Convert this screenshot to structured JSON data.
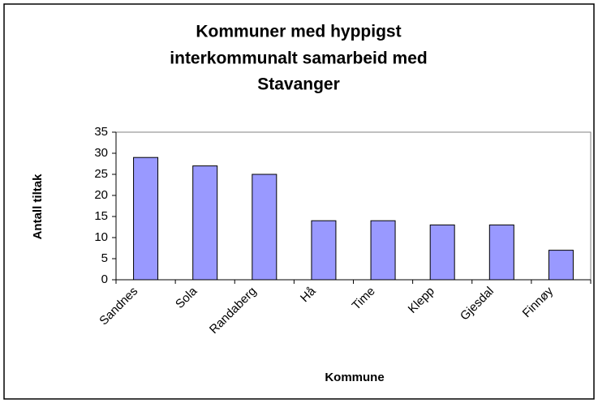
{
  "chart_data": {
    "type": "bar",
    "title": [
      "Kommuner med hyppigst",
      "interkommunalt samarbeid med",
      "Stavanger"
    ],
    "x_label": "Kommune",
    "y_label": "Antall tiltak",
    "categories": [
      "Sandnes",
      "Sola",
      "Randaberg",
      "Hå",
      "Time",
      "Klepp",
      "Gjesdal",
      "Finnøy"
    ],
    "values": [
      29,
      27,
      25,
      14,
      14,
      13,
      13,
      7
    ],
    "color": "#9999ff",
    "ylim": [
      0,
      35
    ],
    "yticks": [
      0,
      5,
      10,
      15,
      20,
      25,
      30,
      35
    ],
    "grid": false
  }
}
